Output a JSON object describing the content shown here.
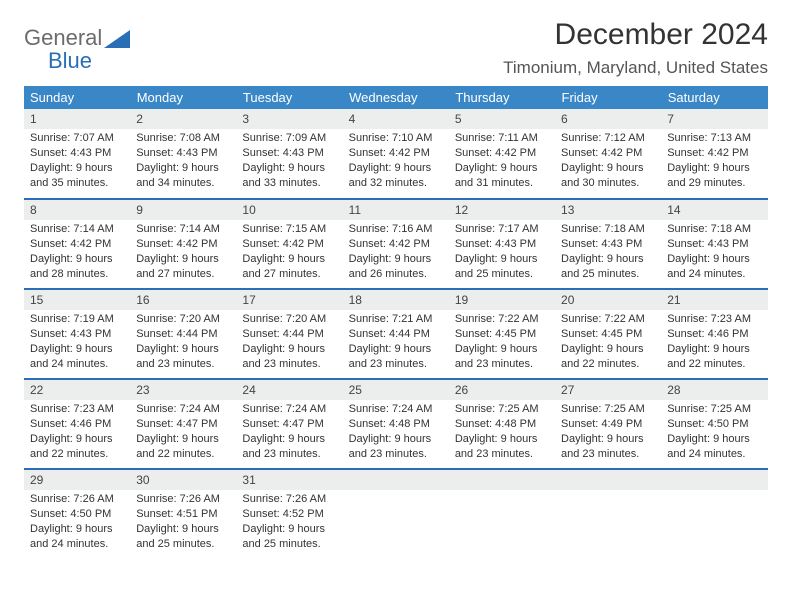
{
  "logo": {
    "word1": "General",
    "word2": "Blue",
    "accent_color": "#2a6fb5",
    "text_color": "#6c6c6c"
  },
  "title": "December 2024",
  "location": "Timonium, Maryland, United States",
  "header_bg": "#3a87c8",
  "daynum_bg": "#eceeee",
  "rule_color": "#2a6fb5",
  "weekdays": [
    "Sunday",
    "Monday",
    "Tuesday",
    "Wednesday",
    "Thursday",
    "Friday",
    "Saturday"
  ],
  "weeks": [
    [
      {
        "n": "1",
        "sr": "Sunrise: 7:07 AM",
        "ss": "Sunset: 4:43 PM",
        "dl": "Daylight: 9 hours and 35 minutes."
      },
      {
        "n": "2",
        "sr": "Sunrise: 7:08 AM",
        "ss": "Sunset: 4:43 PM",
        "dl": "Daylight: 9 hours and 34 minutes."
      },
      {
        "n": "3",
        "sr": "Sunrise: 7:09 AM",
        "ss": "Sunset: 4:43 PM",
        "dl": "Daylight: 9 hours and 33 minutes."
      },
      {
        "n": "4",
        "sr": "Sunrise: 7:10 AM",
        "ss": "Sunset: 4:42 PM",
        "dl": "Daylight: 9 hours and 32 minutes."
      },
      {
        "n": "5",
        "sr": "Sunrise: 7:11 AM",
        "ss": "Sunset: 4:42 PM",
        "dl": "Daylight: 9 hours and 31 minutes."
      },
      {
        "n": "6",
        "sr": "Sunrise: 7:12 AM",
        "ss": "Sunset: 4:42 PM",
        "dl": "Daylight: 9 hours and 30 minutes."
      },
      {
        "n": "7",
        "sr": "Sunrise: 7:13 AM",
        "ss": "Sunset: 4:42 PM",
        "dl": "Daylight: 9 hours and 29 minutes."
      }
    ],
    [
      {
        "n": "8",
        "sr": "Sunrise: 7:14 AM",
        "ss": "Sunset: 4:42 PM",
        "dl": "Daylight: 9 hours and 28 minutes."
      },
      {
        "n": "9",
        "sr": "Sunrise: 7:14 AM",
        "ss": "Sunset: 4:42 PM",
        "dl": "Daylight: 9 hours and 27 minutes."
      },
      {
        "n": "10",
        "sr": "Sunrise: 7:15 AM",
        "ss": "Sunset: 4:42 PM",
        "dl": "Daylight: 9 hours and 27 minutes."
      },
      {
        "n": "11",
        "sr": "Sunrise: 7:16 AM",
        "ss": "Sunset: 4:42 PM",
        "dl": "Daylight: 9 hours and 26 minutes."
      },
      {
        "n": "12",
        "sr": "Sunrise: 7:17 AM",
        "ss": "Sunset: 4:43 PM",
        "dl": "Daylight: 9 hours and 25 minutes."
      },
      {
        "n": "13",
        "sr": "Sunrise: 7:18 AM",
        "ss": "Sunset: 4:43 PM",
        "dl": "Daylight: 9 hours and 25 minutes."
      },
      {
        "n": "14",
        "sr": "Sunrise: 7:18 AM",
        "ss": "Sunset: 4:43 PM",
        "dl": "Daylight: 9 hours and 24 minutes."
      }
    ],
    [
      {
        "n": "15",
        "sr": "Sunrise: 7:19 AM",
        "ss": "Sunset: 4:43 PM",
        "dl": "Daylight: 9 hours and 24 minutes."
      },
      {
        "n": "16",
        "sr": "Sunrise: 7:20 AM",
        "ss": "Sunset: 4:44 PM",
        "dl": "Daylight: 9 hours and 23 minutes."
      },
      {
        "n": "17",
        "sr": "Sunrise: 7:20 AM",
        "ss": "Sunset: 4:44 PM",
        "dl": "Daylight: 9 hours and 23 minutes."
      },
      {
        "n": "18",
        "sr": "Sunrise: 7:21 AM",
        "ss": "Sunset: 4:44 PM",
        "dl": "Daylight: 9 hours and 23 minutes."
      },
      {
        "n": "19",
        "sr": "Sunrise: 7:22 AM",
        "ss": "Sunset: 4:45 PM",
        "dl": "Daylight: 9 hours and 23 minutes."
      },
      {
        "n": "20",
        "sr": "Sunrise: 7:22 AM",
        "ss": "Sunset: 4:45 PM",
        "dl": "Daylight: 9 hours and 22 minutes."
      },
      {
        "n": "21",
        "sr": "Sunrise: 7:23 AM",
        "ss": "Sunset: 4:46 PM",
        "dl": "Daylight: 9 hours and 22 minutes."
      }
    ],
    [
      {
        "n": "22",
        "sr": "Sunrise: 7:23 AM",
        "ss": "Sunset: 4:46 PM",
        "dl": "Daylight: 9 hours and 22 minutes."
      },
      {
        "n": "23",
        "sr": "Sunrise: 7:24 AM",
        "ss": "Sunset: 4:47 PM",
        "dl": "Daylight: 9 hours and 22 minutes."
      },
      {
        "n": "24",
        "sr": "Sunrise: 7:24 AM",
        "ss": "Sunset: 4:47 PM",
        "dl": "Daylight: 9 hours and 23 minutes."
      },
      {
        "n": "25",
        "sr": "Sunrise: 7:24 AM",
        "ss": "Sunset: 4:48 PM",
        "dl": "Daylight: 9 hours and 23 minutes."
      },
      {
        "n": "26",
        "sr": "Sunrise: 7:25 AM",
        "ss": "Sunset: 4:48 PM",
        "dl": "Daylight: 9 hours and 23 minutes."
      },
      {
        "n": "27",
        "sr": "Sunrise: 7:25 AM",
        "ss": "Sunset: 4:49 PM",
        "dl": "Daylight: 9 hours and 23 minutes."
      },
      {
        "n": "28",
        "sr": "Sunrise: 7:25 AM",
        "ss": "Sunset: 4:50 PM",
        "dl": "Daylight: 9 hours and 24 minutes."
      }
    ],
    [
      {
        "n": "29",
        "sr": "Sunrise: 7:26 AM",
        "ss": "Sunset: 4:50 PM",
        "dl": "Daylight: 9 hours and 24 minutes."
      },
      {
        "n": "30",
        "sr": "Sunrise: 7:26 AM",
        "ss": "Sunset: 4:51 PM",
        "dl": "Daylight: 9 hours and 25 minutes."
      },
      {
        "n": "31",
        "sr": "Sunrise: 7:26 AM",
        "ss": "Sunset: 4:52 PM",
        "dl": "Daylight: 9 hours and 25 minutes."
      },
      {
        "empty": true
      },
      {
        "empty": true
      },
      {
        "empty": true
      },
      {
        "empty": true
      }
    ]
  ]
}
